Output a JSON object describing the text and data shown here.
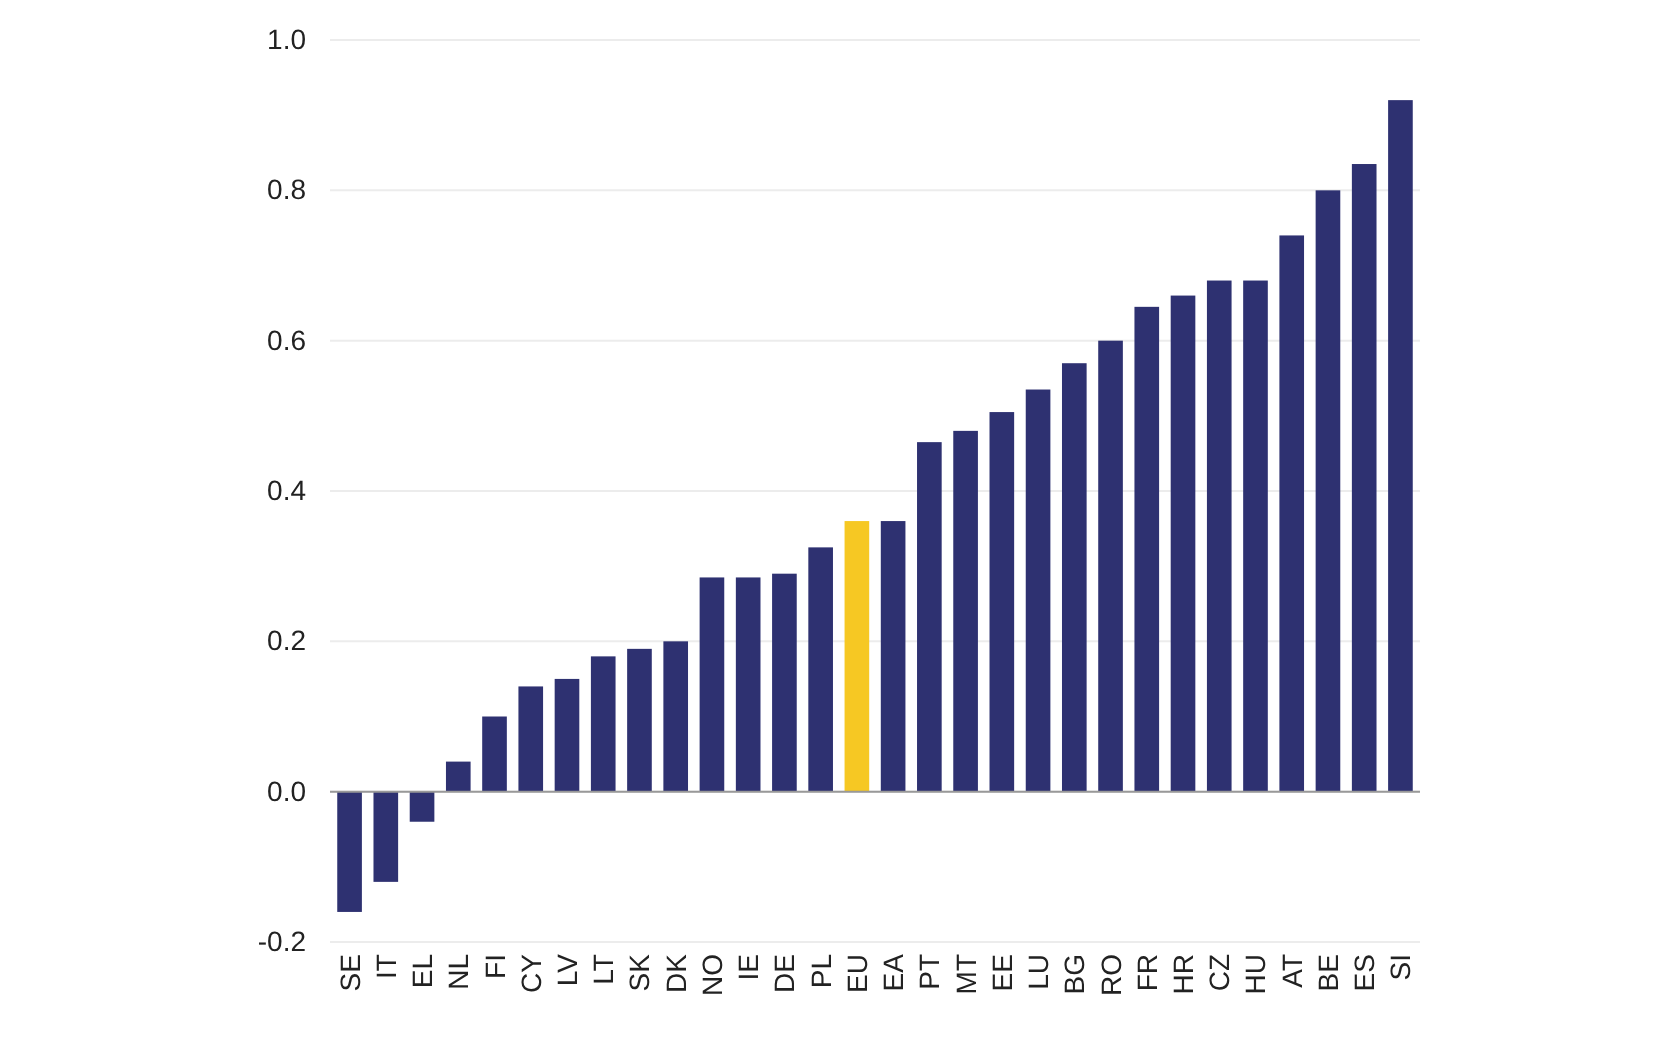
{
  "chart_data": {
    "type": "bar",
    "categories": [
      "SE",
      "IT",
      "EL",
      "NL",
      "FI",
      "CY",
      "LV",
      "LT",
      "SK",
      "DK",
      "NO",
      "IE",
      "DE",
      "PL",
      "EU",
      "EA",
      "PT",
      "MT",
      "EE",
      "LU",
      "BG",
      "RO",
      "FR",
      "HR",
      "CZ",
      "HU",
      "AT",
      "BE",
      "ES",
      "SI"
    ],
    "values": [
      -0.16,
      -0.12,
      -0.04,
      0.04,
      0.1,
      0.14,
      0.15,
      0.18,
      0.19,
      0.2,
      0.285,
      0.285,
      0.29,
      0.325,
      0.36,
      0.36,
      0.465,
      0.48,
      0.505,
      0.535,
      0.57,
      0.6,
      0.645,
      0.66,
      0.68,
      0.68,
      0.74,
      0.8,
      0.835,
      0.92
    ],
    "colors": [
      "#2e3171",
      "#2e3171",
      "#2e3171",
      "#2e3171",
      "#2e3171",
      "#2e3171",
      "#2e3171",
      "#2e3171",
      "#2e3171",
      "#2e3171",
      "#2e3171",
      "#2e3171",
      "#2e3171",
      "#2e3171",
      "#f6c823",
      "#2e3171",
      "#2e3171",
      "#2e3171",
      "#2e3171",
      "#2e3171",
      "#2e3171",
      "#2e3171",
      "#2e3171",
      "#2e3171",
      "#2e3171",
      "#2e3171",
      "#2e3171",
      "#2e3171",
      "#2e3171",
      "#2e3171"
    ],
    "ylim": [
      -0.2,
      1.0
    ],
    "yticks": [
      {
        "value": -0.2,
        "label": "-0.2"
      },
      {
        "value": 0,
        "label": "0.0"
      },
      {
        "value": 0.2,
        "label": "0.2"
      },
      {
        "value": 0.4,
        "label": "0.4"
      },
      {
        "value": 0.6,
        "label": "0.6"
      },
      {
        "value": 0.8,
        "label": "0.8"
      },
      {
        "value": 1.0,
        "label": "1.0"
      }
    ],
    "grid": "y"
  }
}
